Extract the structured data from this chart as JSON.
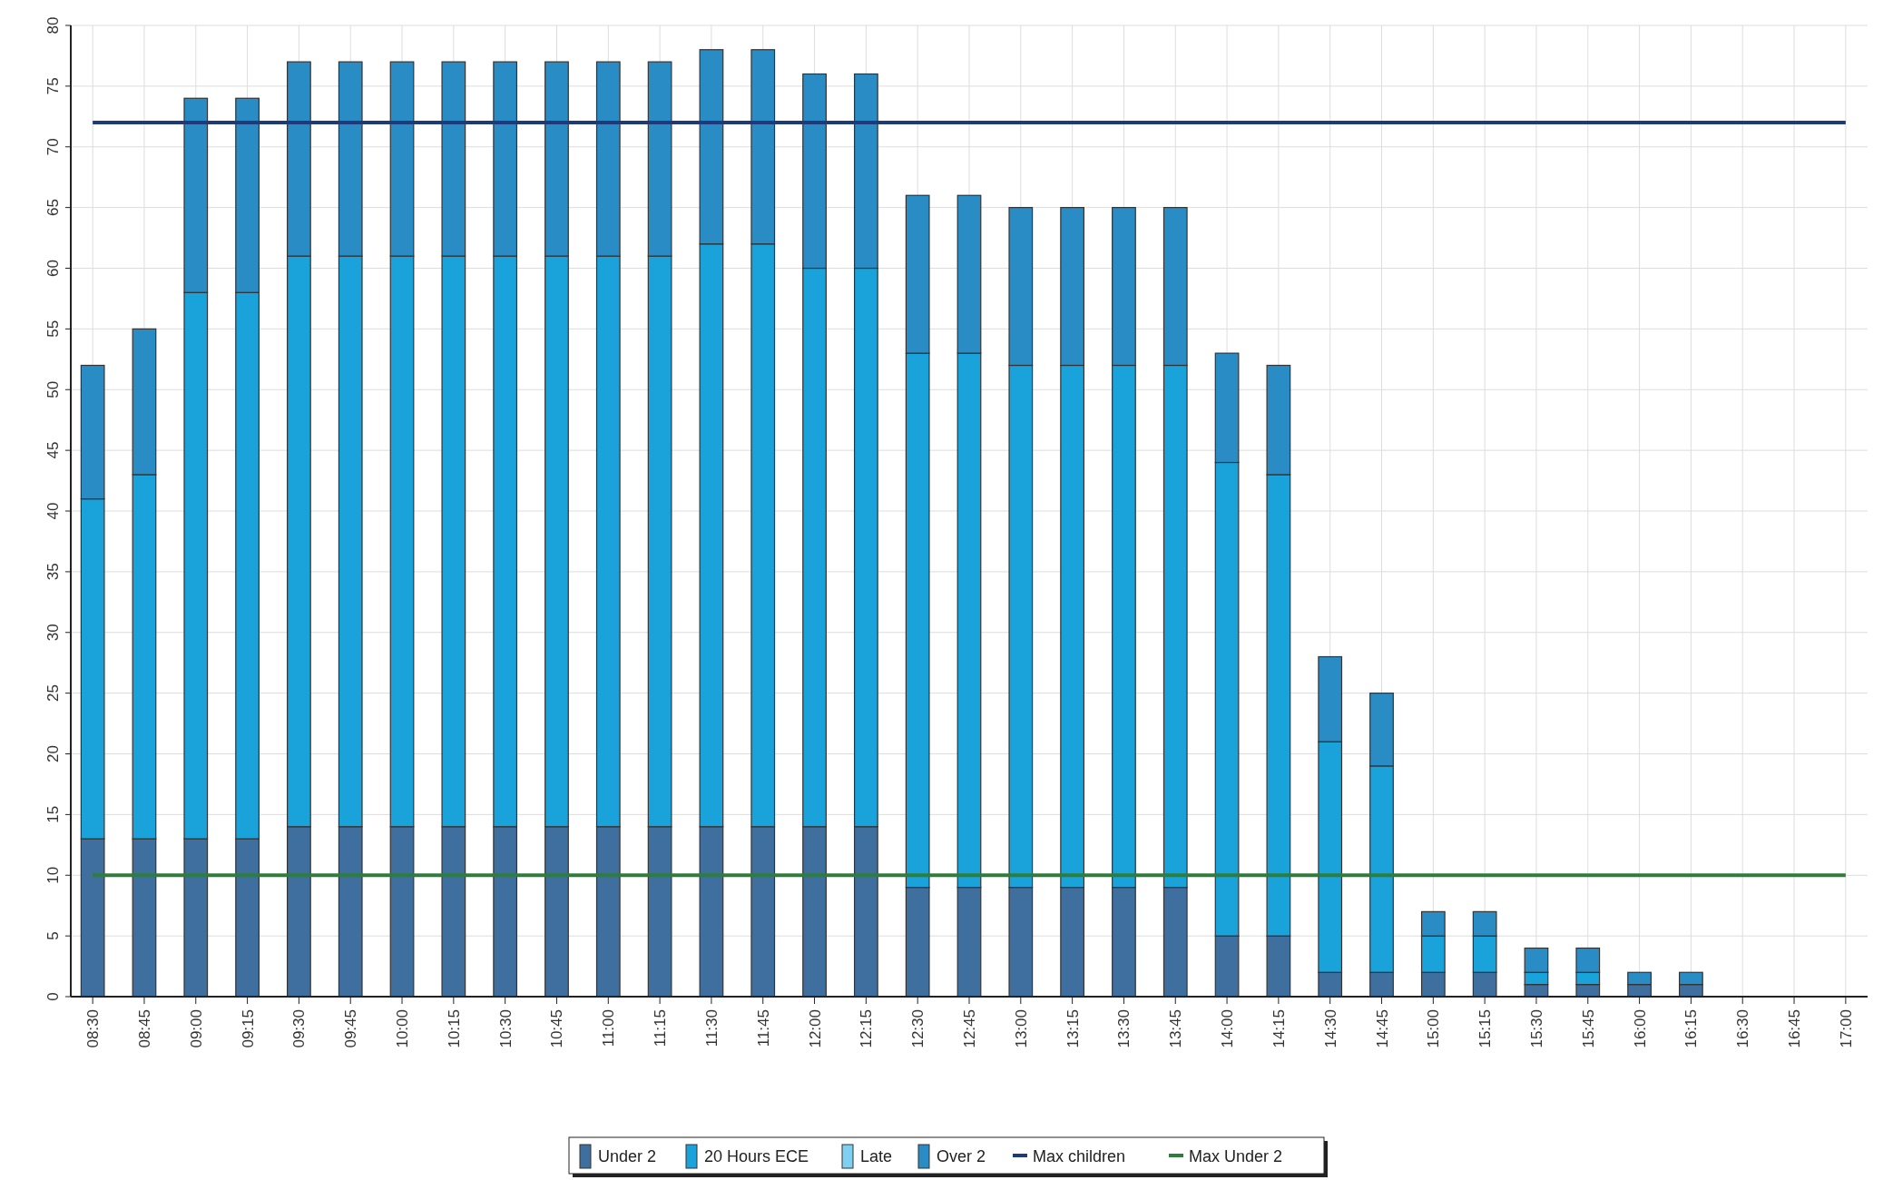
{
  "chart_data": {
    "type": "bar",
    "stacked": true,
    "categories": [
      "08:30",
      "08:45",
      "09:00",
      "09:15",
      "09:30",
      "09:45",
      "10:00",
      "10:15",
      "10:30",
      "10:45",
      "11:00",
      "11:15",
      "11:30",
      "11:45",
      "12:00",
      "12:15",
      "12:30",
      "12:45",
      "13:00",
      "13:15",
      "13:30",
      "13:45",
      "14:00",
      "14:15",
      "14:30",
      "14:45",
      "15:00",
      "15:15",
      "15:30",
      "15:45",
      "16:00",
      "16:15",
      "16:30",
      "16:45",
      "17:00"
    ],
    "series": [
      {
        "name": "Under 2",
        "color": "#3f6f9f",
        "values": [
          13,
          13,
          13,
          13,
          14,
          14,
          14,
          14,
          14,
          14,
          14,
          14,
          14,
          14,
          14,
          14,
          9,
          9,
          9,
          9,
          9,
          9,
          5,
          5,
          2,
          2,
          2,
          2,
          1,
          1,
          1,
          1,
          null,
          null,
          null
        ]
      },
      {
        "name": "20 Hours ECE",
        "color": "#1aa3db",
        "values": [
          28,
          30,
          45,
          45,
          47,
          47,
          47,
          47,
          47,
          47,
          47,
          47,
          48,
          48,
          46,
          46,
          44,
          44,
          43,
          43,
          43,
          43,
          39,
          38,
          19,
          17,
          3,
          3,
          1,
          1,
          0,
          0,
          null,
          null,
          null
        ]
      },
      {
        "name": "Late",
        "color": "#7fd0f0",
        "values": [
          0,
          0,
          0,
          0,
          0,
          0,
          0,
          0,
          0,
          0,
          0,
          0,
          0,
          0,
          0,
          0,
          0,
          0,
          0,
          0,
          0,
          0,
          0,
          0,
          0,
          0,
          0,
          0,
          0,
          0,
          0,
          0,
          null,
          null,
          null
        ]
      },
      {
        "name": "Over 2",
        "color": "#2a8cc4",
        "values": [
          11,
          12,
          16,
          16,
          16,
          16,
          16,
          16,
          16,
          16,
          16,
          16,
          16,
          16,
          16,
          16,
          13,
          13,
          13,
          13,
          13,
          13,
          9,
          9,
          7,
          6,
          2,
          2,
          2,
          2,
          1,
          1,
          null,
          null,
          null
        ]
      },
      {
        "name": "Max children",
        "type": "line",
        "color": "#1f3a7a",
        "values": [
          72,
          72,
          72,
          72,
          72,
          72,
          72,
          72,
          72,
          72,
          72,
          72,
          72,
          72,
          72,
          72,
          72,
          72,
          72,
          72,
          72,
          72,
          72,
          72,
          72,
          72,
          72,
          72,
          72,
          72,
          72,
          72,
          72,
          72,
          72
        ]
      },
      {
        "name": "Max Under 2",
        "type": "line",
        "color": "#2e7d3a",
        "values": [
          10,
          10,
          10,
          10,
          10,
          10,
          10,
          10,
          10,
          10,
          10,
          10,
          10,
          10,
          10,
          10,
          10,
          10,
          10,
          10,
          10,
          10,
          10,
          10,
          10,
          10,
          10,
          10,
          10,
          10,
          10,
          10,
          10,
          10,
          10
        ]
      }
    ],
    "ylim": [
      0,
      80
    ],
    "yticks": [
      0,
      5,
      10,
      15,
      20,
      25,
      30,
      35,
      40,
      45,
      50,
      55,
      60,
      65,
      70,
      75,
      80
    ],
    "grid": true,
    "legend": "bottom"
  }
}
